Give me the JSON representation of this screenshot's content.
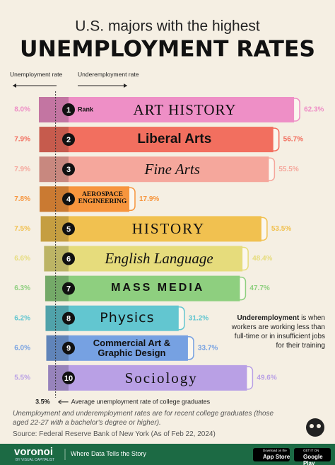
{
  "chart_data": {
    "type": "bar",
    "title": "U.S. majors with the highest",
    "subtitle": "UNEMPLOYMENT RATES",
    "rank_label": "Rank",
    "ranks": [
      1,
      2,
      3,
      4,
      5,
      6,
      7,
      8,
      9,
      10
    ],
    "categories": [
      "ART HISTORY",
      "Liberal Arts",
      "Fine Arts",
      "AEROSPACE ENGINEERING",
      "HISTORY",
      "English Language",
      "MASS MEDIA",
      "Physics",
      "Commercial Art & Graphic Design",
      "Sociology"
    ],
    "colors": [
      "#ee8fc6",
      "#f26f5f",
      "#f5a79c",
      "#f7953d",
      "#f1c150",
      "#e6dc7c",
      "#8ecf7f",
      "#62c6d0",
      "#76a1e2",
      "#b9a0e5"
    ],
    "series": [
      {
        "name": "Unemployment rate",
        "values": [
          8.0,
          7.9,
          7.9,
          7.8,
          7.5,
          6.6,
          6.3,
          6.2,
          6.0,
          5.5
        ],
        "value_labels": [
          "8.0%",
          "7.9%",
          "7.9%",
          "7.8%",
          "7.5%",
          "6.6%",
          "6.3%",
          "6.2%",
          "6.0%",
          "5.5%"
        ]
      },
      {
        "name": "Underemployment rate",
        "values": [
          62.3,
          56.7,
          55.5,
          17.9,
          53.5,
          48.4,
          47.7,
          31.2,
          33.7,
          49.6
        ],
        "value_labels": [
          "62.3%",
          "56.7%",
          "55.5%",
          "17.9%",
          "53.5%",
          "48.4%",
          "47.7%",
          "31.2%",
          "33.7%",
          "49.6%"
        ]
      }
    ],
    "reference_line": {
      "value": 3.5,
      "label": "3.5%",
      "text": "Average unemployment rate of college graduates"
    },
    "note_term": "Underemployment",
    "note_text": " is when workers are working less than full-time or in insufficient jobs for their training",
    "footnote": "Unemployment and underemployment rates are for recent college graduates (those aged 22-27 with a bachelor's degree or higher).",
    "source": "Source: Federal Reserve Bank of New York (As of Feb 22, 2024)",
    "brand": "voronoi",
    "brand_sub": "BY VISUAL CAPITALIST",
    "tagline": "Where Data Tells the Story",
    "badges": [
      {
        "small": "Download on the",
        "big": "App Store"
      },
      {
        "small": "GET IT ON",
        "big": "Google Play"
      }
    ]
  }
}
